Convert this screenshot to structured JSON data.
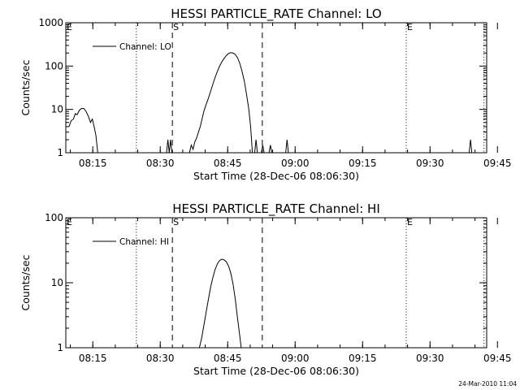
{
  "footer_timestamp": "24-Mar-2010 11:04",
  "chart_data": [
    {
      "type": "line",
      "title": "HESSI PARTICLE_RATE Channel: LO",
      "xlabel": "Start Time (28-Dec-06 08:06:30)",
      "ylabel": "Counts/sec",
      "yscale": "log",
      "ylim": [
        1,
        1000
      ],
      "xlim_minutes": [
        8.3,
        101.9
      ],
      "y_ticks": [
        "1",
        "10",
        "100",
        "1000"
      ],
      "x_ticks": [
        {
          "t": 14.3,
          "label": "08:15"
        },
        {
          "t": 29.3,
          "label": "08:30"
        },
        {
          "t": 44.3,
          "label": "08:45"
        },
        {
          "t": 59.3,
          "label": "09:00"
        },
        {
          "t": 74.3,
          "label": "09:15"
        },
        {
          "t": 89.3,
          "label": "09:30"
        },
        {
          "t": 104.3,
          "label": "09:45"
        }
      ],
      "legend": {
        "label": "Channel: LO",
        "position": "top-left"
      },
      "series": [
        {
          "name": "Channel: LO",
          "points": [
            [
              9.0,
              4.0
            ],
            [
              9.5,
              5.5
            ],
            [
              10.0,
              6.0
            ],
            [
              10.4,
              8.0
            ],
            [
              10.8,
              7.5
            ],
            [
              11.3,
              9.5
            ],
            [
              11.8,
              10.5
            ],
            [
              12.3,
              10.5
            ],
            [
              12.8,
              9.0
            ],
            [
              13.3,
              7.0
            ],
            [
              13.8,
              5.0
            ],
            [
              14.2,
              6.0
            ],
            [
              14.6,
              4.0
            ],
            [
              15.0,
              2.5
            ],
            [
              15.4,
              1.0
            ],
            [
              30.7,
              1.0
            ],
            [
              31.0,
              2.0
            ],
            [
              31.3,
              1.0
            ],
            [
              31.6,
              2.0
            ],
            [
              31.9,
              1.0
            ],
            [
              35.8,
              1.0
            ],
            [
              36.2,
              1.5
            ],
            [
              36.6,
              1.2
            ],
            [
              37.0,
              1.8
            ],
            [
              37.4,
              2.2
            ],
            [
              37.8,
              3.0
            ],
            [
              38.2,
              4.0
            ],
            [
              38.6,
              6.0
            ],
            [
              39.0,
              9.0
            ],
            [
              39.5,
              13.0
            ],
            [
              40.0,
              18.0
            ],
            [
              40.5,
              26.0
            ],
            [
              41.0,
              38.0
            ],
            [
              41.5,
              55.0
            ],
            [
              42.0,
              75.0
            ],
            [
              42.5,
              100.0
            ],
            [
              43.0,
              125.0
            ],
            [
              43.5,
              150.0
            ],
            [
              44.0,
              175.0
            ],
            [
              44.5,
              195.0
            ],
            [
              45.0,
              205.0
            ],
            [
              45.5,
              200.0
            ],
            [
              46.0,
              185.0
            ],
            [
              46.5,
              155.0
            ],
            [
              47.0,
              115.0
            ],
            [
              47.5,
              75.0
            ],
            [
              48.0,
              45.0
            ],
            [
              48.5,
              22.0
            ],
            [
              49.0,
              10.0
            ],
            [
              49.4,
              4.0
            ],
            [
              49.8,
              1.0
            ],
            [
              50.3,
              1.0
            ],
            [
              50.6,
              2.0
            ],
            [
              50.9,
              1.0
            ],
            [
              51.8,
              1.0
            ],
            [
              52.1,
              1.5
            ],
            [
              52.4,
              1.0
            ],
            [
              53.5,
              1.0
            ],
            [
              53.8,
              1.5
            ],
            [
              54.1,
              1.0
            ],
            [
              57.2,
              1.0
            ],
            [
              57.5,
              2.0
            ],
            [
              57.8,
              1.0
            ],
            [
              98.0,
              1.0
            ],
            [
              98.3,
              2.0
            ],
            [
              98.6,
              1.0
            ]
          ]
        }
      ],
      "markers": [
        {
          "t": 24.0,
          "style": "dotted",
          "label": ""
        },
        {
          "t": 32.0,
          "style": "dashed",
          "label": "S"
        },
        {
          "t": 52.0,
          "style": "dashed",
          "label": ""
        },
        {
          "t": 84.0,
          "style": "dotted",
          "label": "E"
        },
        {
          "t": 101.3,
          "style": "dotted",
          "label": ""
        }
      ],
      "grid": false
    },
    {
      "type": "line",
      "title": "HESSI PARTICLE_RATE Channel: HI",
      "xlabel": "Start Time (28-Dec-06 08:06:30)",
      "ylabel": "Counts/sec",
      "yscale": "log",
      "ylim": [
        1,
        100
      ],
      "xlim_minutes": [
        8.3,
        101.9
      ],
      "y_ticks": [
        "1",
        "10",
        "100"
      ],
      "x_ticks": [
        {
          "t": 14.3,
          "label": "08:15"
        },
        {
          "t": 29.3,
          "label": "08:30"
        },
        {
          "t": 44.3,
          "label": "08:45"
        },
        {
          "t": 59.3,
          "label": "09:00"
        },
        {
          "t": 74.3,
          "label": "09:15"
        },
        {
          "t": 89.3,
          "label": "09:30"
        },
        {
          "t": 104.3,
          "label": "09:45"
        }
      ],
      "legend": {
        "label": "Channel: HI",
        "position": "top-left"
      },
      "series": [
        {
          "name": "Channel: HI",
          "points": [
            [
              38.0,
              1.0
            ],
            [
              38.5,
              1.4
            ],
            [
              39.0,
              2.2
            ],
            [
              39.5,
              3.5
            ],
            [
              40.0,
              5.5
            ],
            [
              40.5,
              8.5
            ],
            [
              41.0,
              12.0
            ],
            [
              41.5,
              16.0
            ],
            [
              42.0,
              19.5
            ],
            [
              42.5,
              22.0
            ],
            [
              43.0,
              23.0
            ],
            [
              43.5,
              22.5
            ],
            [
              44.0,
              21.0
            ],
            [
              44.5,
              18.0
            ],
            [
              45.0,
              14.0
            ],
            [
              45.5,
              9.5
            ],
            [
              46.0,
              5.5
            ],
            [
              46.5,
              2.8
            ],
            [
              47.0,
              1.5
            ],
            [
              47.3,
              1.0
            ]
          ]
        }
      ],
      "markers": [
        {
          "t": 24.0,
          "style": "dotted",
          "label": ""
        },
        {
          "t": 32.0,
          "style": "dashed",
          "label": "S"
        },
        {
          "t": 52.0,
          "style": "dashed",
          "label": ""
        },
        {
          "t": 84.0,
          "style": "dotted",
          "label": "E"
        },
        {
          "t": 101.3,
          "style": "dotted",
          "label": ""
        }
      ],
      "grid": false
    }
  ]
}
